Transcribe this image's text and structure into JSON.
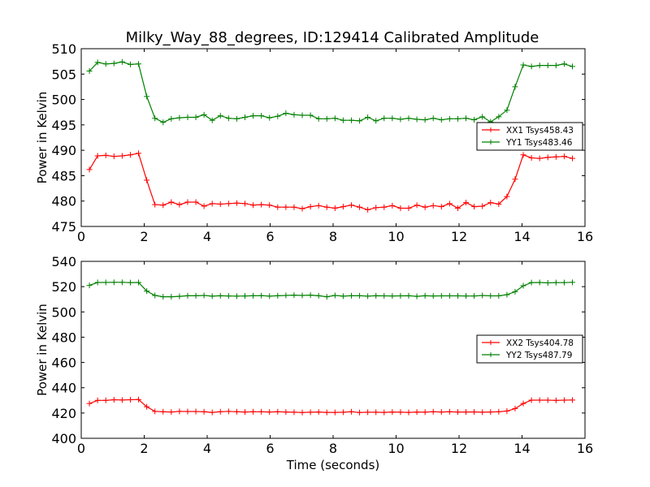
{
  "title": "Milky_Way_88_degrees, ID:129414 Calibrated Amplitude",
  "chart_data": [
    {
      "type": "line",
      "ylabel": "Power in Kelvin",
      "xlabel": "",
      "xlim": [
        0,
        16
      ],
      "ylim": [
        475,
        510
      ],
      "xticks": [
        0,
        2,
        4,
        6,
        8,
        10,
        12,
        14,
        16
      ],
      "yticks": [
        475,
        480,
        485,
        490,
        495,
        500,
        505,
        510
      ],
      "grid": false,
      "legend_position": "center-right",
      "x": [
        0.26,
        0.52,
        0.78,
        1.04,
        1.3,
        1.56,
        1.82,
        2.08,
        2.34,
        2.6,
        2.86,
        3.12,
        3.38,
        3.64,
        3.9,
        4.16,
        4.42,
        4.68,
        4.94,
        5.2,
        5.46,
        5.72,
        5.98,
        6.24,
        6.5,
        6.76,
        7.02,
        7.28,
        7.54,
        7.8,
        8.06,
        8.32,
        8.58,
        8.84,
        9.1,
        9.36,
        9.62,
        9.88,
        10.14,
        10.4,
        10.66,
        10.92,
        11.18,
        11.44,
        11.7,
        11.96,
        12.22,
        12.48,
        12.74,
        13.0,
        13.26,
        13.52,
        13.78,
        14.04,
        14.3,
        14.56,
        14.82,
        15.08,
        15.34,
        15.6
      ],
      "series": [
        {
          "name": "XX1 Tsys458.43",
          "color": "#ff0000",
          "values": [
            486.2,
            488.9,
            489.0,
            488.8,
            488.9,
            489.1,
            489.4,
            484.1,
            479.3,
            479.2,
            479.8,
            479.3,
            479.8,
            479.8,
            479.0,
            479.5,
            479.4,
            479.5,
            479.6,
            479.5,
            479.2,
            479.3,
            479.2,
            478.8,
            478.8,
            478.8,
            478.5,
            478.9,
            479.1,
            478.8,
            478.6,
            478.9,
            479.2,
            478.8,
            478.3,
            478.7,
            478.8,
            479.1,
            478.6,
            478.6,
            479.2,
            478.8,
            479.1,
            478.9,
            479.5,
            478.6,
            479.7,
            478.9,
            479.0,
            479.7,
            479.4,
            480.9,
            484.3,
            489.1,
            488.5,
            488.4,
            488.6,
            488.7,
            488.8,
            488.4
          ]
        },
        {
          "name": "YY1 Tsys483.46",
          "color": "#008000",
          "values": [
            505.6,
            507.3,
            507.0,
            507.1,
            507.4,
            506.9,
            507.0,
            500.6,
            496.3,
            495.5,
            496.2,
            496.4,
            496.5,
            496.5,
            497.0,
            495.9,
            496.8,
            496.3,
            496.2,
            496.5,
            496.8,
            496.8,
            496.4,
            496.7,
            497.3,
            497.0,
            496.9,
            496.9,
            496.2,
            496.2,
            496.3,
            495.9,
            495.9,
            495.8,
            496.5,
            495.8,
            496.3,
            496.3,
            496.1,
            496.3,
            496.1,
            496.0,
            496.3,
            496.0,
            496.2,
            496.2,
            496.3,
            496.0,
            496.6,
            495.6,
            496.6,
            497.9,
            502.5,
            506.8,
            506.5,
            506.7,
            506.7,
            506.7,
            507.0,
            506.5
          ]
        }
      ]
    },
    {
      "type": "line",
      "ylabel": "Power in Kelvin",
      "xlabel": "Time (seconds)",
      "xlim": [
        0,
        16
      ],
      "ylim": [
        400,
        540
      ],
      "xticks": [
        0,
        2,
        4,
        6,
        8,
        10,
        12,
        14,
        16
      ],
      "yticks": [
        400,
        420,
        440,
        460,
        480,
        500,
        520,
        540
      ],
      "grid": false,
      "legend_position": "center-right",
      "x": [
        0.26,
        0.52,
        0.78,
        1.04,
        1.3,
        1.56,
        1.82,
        2.08,
        2.34,
        2.6,
        2.86,
        3.12,
        3.38,
        3.64,
        3.9,
        4.16,
        4.42,
        4.68,
        4.94,
        5.2,
        5.46,
        5.72,
        5.98,
        6.24,
        6.5,
        6.76,
        7.02,
        7.28,
        7.54,
        7.8,
        8.06,
        8.32,
        8.58,
        8.84,
        9.1,
        9.36,
        9.62,
        9.88,
        10.14,
        10.4,
        10.66,
        10.92,
        11.18,
        11.44,
        11.7,
        11.96,
        12.22,
        12.48,
        12.74,
        13.0,
        13.26,
        13.52,
        13.78,
        14.04,
        14.3,
        14.56,
        14.82,
        15.08,
        15.34,
        15.6
      ],
      "series": [
        {
          "name": "XX2 Tsys404.78",
          "color": "#ff0000",
          "values": [
            427.5,
            430.0,
            430.0,
            430.5,
            430.3,
            430.5,
            430.7,
            425.0,
            421.3,
            421.0,
            420.8,
            421.3,
            421.2,
            421.2,
            421.0,
            420.5,
            421.0,
            421.3,
            421.0,
            420.8,
            421.0,
            421.0,
            420.8,
            421.0,
            420.8,
            420.6,
            420.4,
            420.6,
            420.8,
            420.5,
            420.5,
            420.6,
            421.0,
            420.4,
            420.6,
            420.6,
            420.5,
            420.8,
            420.7,
            420.5,
            420.8,
            420.7,
            421.0,
            420.8,
            421.0,
            420.8,
            420.8,
            420.9,
            420.6,
            420.8,
            421.0,
            421.6,
            423.5,
            427.5,
            430.2,
            430.2,
            430.2,
            430.0,
            430.2,
            430.3
          ]
        },
        {
          "name": "YY2 Tsys487.79",
          "color": "#008000",
          "values": [
            521.0,
            523.3,
            523.3,
            523.4,
            523.4,
            523.2,
            523.3,
            516.5,
            513.0,
            512.0,
            512.0,
            512.3,
            512.8,
            512.8,
            513.0,
            512.5,
            512.8,
            512.6,
            512.5,
            512.6,
            512.8,
            512.9,
            512.5,
            512.8,
            513.0,
            513.3,
            513.0,
            513.3,
            512.8,
            512.0,
            513.0,
            512.5,
            512.8,
            512.8,
            512.5,
            512.8,
            512.7,
            512.6,
            512.7,
            512.8,
            512.3,
            512.8,
            512.6,
            512.7,
            512.7,
            512.7,
            512.6,
            512.6,
            513.0,
            512.7,
            512.7,
            513.6,
            516.0,
            520.7,
            523.2,
            523.3,
            523.0,
            523.2,
            523.2,
            523.4
          ]
        }
      ]
    }
  ]
}
